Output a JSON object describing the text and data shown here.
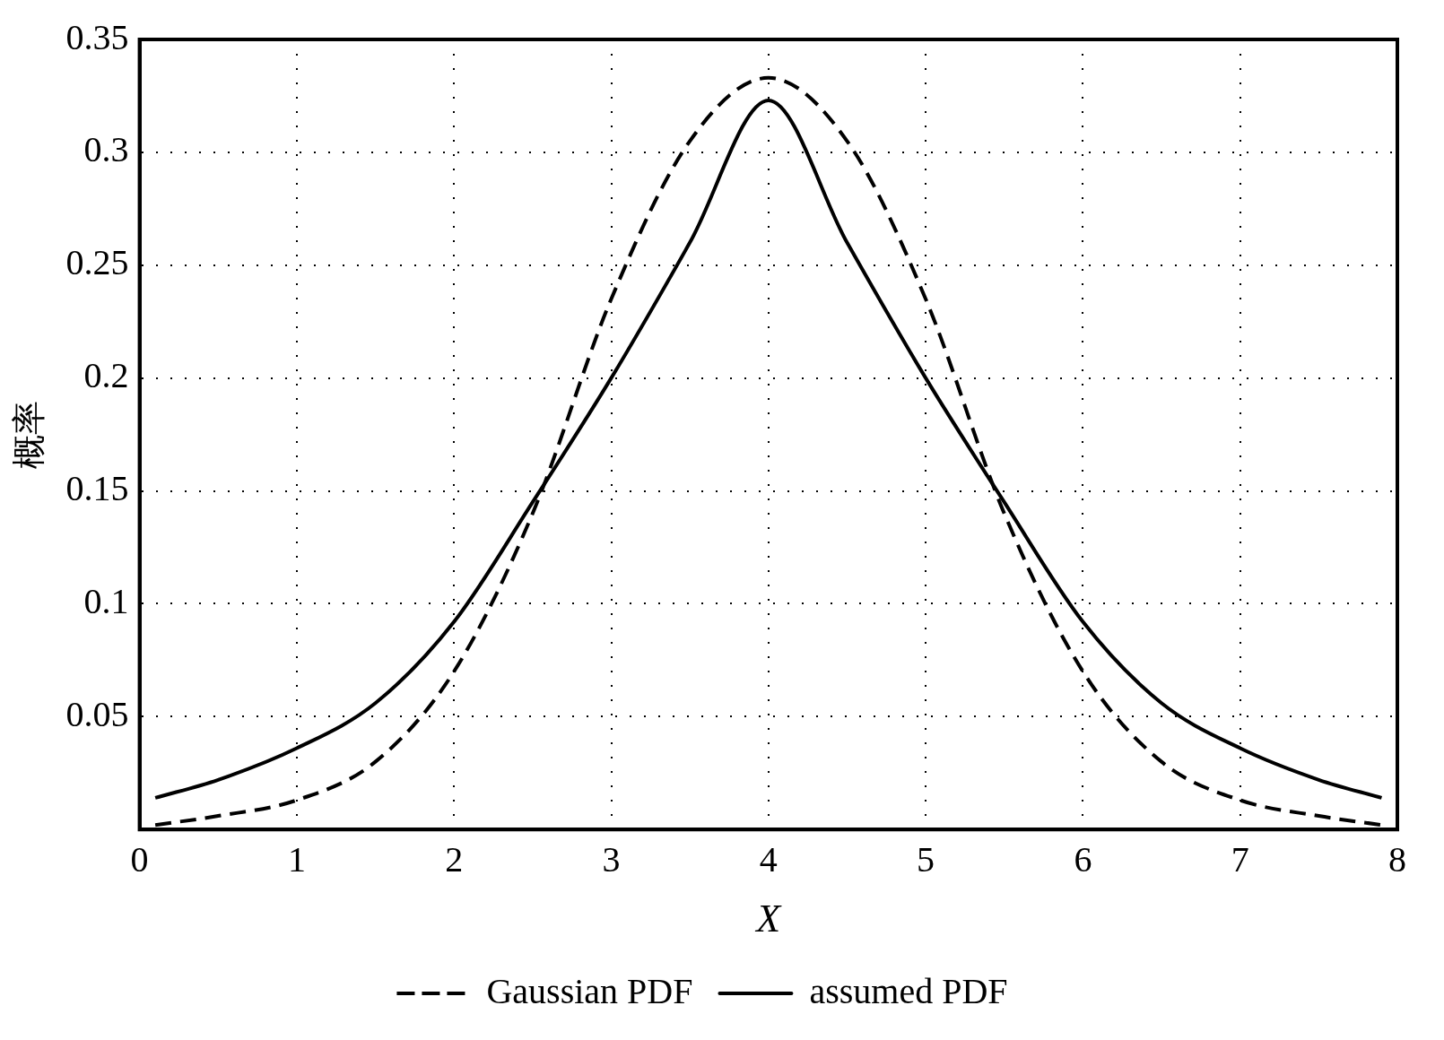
{
  "chart_data": {
    "type": "line",
    "xlabel": "X",
    "ylabel": "概率",
    "x": [
      0.1,
      0.5,
      1,
      1.5,
      2,
      2.5,
      3,
      3.5,
      4,
      4.5,
      5,
      5.5,
      6,
      6.5,
      7,
      7.5,
      7.9
    ],
    "series": [
      {
        "name": "Gaussian PDF",
        "color": "#000000",
        "line_style": "dashed",
        "values": [
          0.002,
          0.006,
          0.013,
          0.03,
          0.07,
          0.14,
          0.235,
          0.305,
          0.333,
          0.305,
          0.235,
          0.14,
          0.07,
          0.03,
          0.013,
          0.006,
          0.002
        ]
      },
      {
        "name": "assumed PDF",
        "color": "#000000",
        "line_style": "solid",
        "values": [
          0.014,
          0.022,
          0.036,
          0.056,
          0.092,
          0.145,
          0.2,
          0.26,
          0.323,
          0.26,
          0.2,
          0.145,
          0.092,
          0.056,
          0.036,
          0.022,
          0.014
        ]
      }
    ],
    "xlim": [
      0,
      8
    ],
    "xticks": [
      0,
      1,
      2,
      3,
      4,
      5,
      6,
      7,
      8
    ],
    "ylim": [
      0,
      0.35
    ],
    "yticks": [
      0.05,
      0.1,
      0.15,
      0.2,
      0.25,
      0.3,
      0.35
    ],
    "grid": true,
    "legend": "bottom",
    "marker": "none"
  }
}
